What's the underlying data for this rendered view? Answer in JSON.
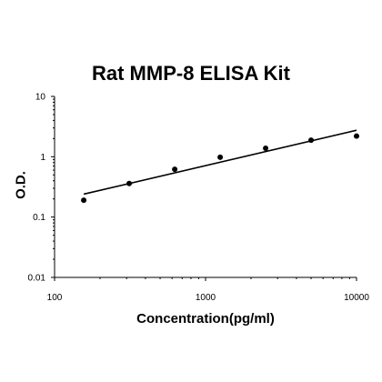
{
  "chart_data": {
    "type": "scatter",
    "title": "Rat MMP-8 ELISA Kit",
    "xlabel": "Concentration(pg/ml)",
    "ylabel": "O.D.",
    "x_scale": "log",
    "y_scale": "log",
    "xlim": [
      100,
      10000
    ],
    "ylim": [
      0.01,
      10
    ],
    "x_ticks": [
      100,
      1000,
      10000
    ],
    "x_tick_labels": [
      "100",
      "1000",
      "10000"
    ],
    "y_ticks": [
      0.01,
      0.1,
      1,
      10
    ],
    "y_tick_labels": [
      "0.01",
      "0.1",
      "1",
      "10"
    ],
    "grid": false,
    "legend": false,
    "series": [
      {
        "x": [
          156,
          312,
          625,
          1250,
          2500,
          5000,
          10000
        ],
        "y": [
          0.19,
          0.36,
          0.62,
          0.98,
          1.38,
          1.88,
          2.2
        ]
      }
    ],
    "fit_line": {
      "x": [
        156,
        10000
      ],
      "y": [
        0.24,
        2.75
      ]
    },
    "colors": {
      "points": "#000000",
      "line": "#000000",
      "axes": "#000000"
    }
  }
}
